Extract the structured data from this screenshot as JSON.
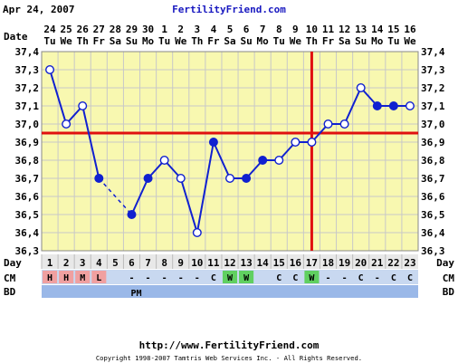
{
  "header": {
    "date": "Apr 24, 2007",
    "brand": "FertilityFriend.com"
  },
  "footer": {
    "url": "http://www.FertilityFriend.com",
    "copyright": "Copyright 1998-2007 Tamtris Web Services Inc. - All Rights Reserved."
  },
  "colors": {
    "plot_bg": "#f8f8b0",
    "grid": "#c8c8c8",
    "temp_line": "#1020d0",
    "coverline": "#e01010",
    "row_day_bg": "#e8e8e8",
    "row_cm_bg": "#c8d8f0",
    "row_bd_bg": "#9ab8e8",
    "cm_H": "#f0a0a0",
    "cm_M": "#f0a0a0",
    "cm_L": "#f0a0a0",
    "cm_W": "#60d060"
  },
  "labels": {
    "date_row": "Date",
    "day_row": "Day",
    "cm_row": "CM",
    "bd_row": "BD"
  },
  "chart_data": {
    "type": "line",
    "title": "",
    "ylim": [
      36.3,
      37.4
    ],
    "yticks": [
      "37,4",
      "37,3",
      "37,2",
      "37,1",
      "37,0",
      "36,9",
      "36,8",
      "36,7",
      "36,6",
      "36,5",
      "36,4",
      "36,3"
    ],
    "ytick_values": [
      37.4,
      37.3,
      37.2,
      37.1,
      37.0,
      36.9,
      36.8,
      36.7,
      36.6,
      36.5,
      36.4,
      36.3
    ],
    "dates": [
      "24",
      "25",
      "26",
      "27",
      "28",
      "29",
      "30",
      "1",
      "2",
      "3",
      "4",
      "5",
      "6",
      "7",
      "8",
      "9",
      "10",
      "11",
      "12",
      "13",
      "14",
      "15",
      "16"
    ],
    "weekdays": [
      "Tu",
      "We",
      "Th",
      "Fr",
      "Sa",
      "Su",
      "Mo",
      "Tu",
      "We",
      "Th",
      "Fr",
      "Sa",
      "Su",
      "Mo",
      "Tu",
      "We",
      "Th",
      "Fr",
      "Sa",
      "Su",
      "Mo",
      "Tu",
      "We"
    ],
    "days": [
      1,
      2,
      3,
      4,
      5,
      6,
      7,
      8,
      9,
      10,
      11,
      12,
      13,
      14,
      15,
      16,
      17,
      18,
      19,
      20,
      21,
      22,
      23
    ],
    "temps": [
      37.3,
      37.0,
      37.1,
      36.7,
      null,
      36.5,
      36.7,
      36.8,
      36.7,
      36.4,
      36.9,
      36.7,
      36.7,
      36.8,
      36.8,
      36.9,
      36.9,
      37.0,
      37.0,
      37.2,
      37.1,
      37.1,
      37.1
    ],
    "filled": [
      false,
      false,
      false,
      true,
      false,
      true,
      true,
      false,
      false,
      false,
      true,
      false,
      true,
      true,
      false,
      false,
      false,
      false,
      false,
      false,
      true,
      true,
      false
    ],
    "dashed_segment": [
      4,
      6
    ],
    "coverline": 36.95,
    "ovulation_day": 17,
    "cm": [
      "H",
      "H",
      "M",
      "L",
      "",
      "-",
      "-",
      "-",
      "-",
      "-",
      "C",
      "W",
      "W",
      "",
      "C",
      "C",
      "W",
      "-",
      "-",
      "C",
      "-",
      "C",
      "C"
    ],
    "bd": [
      "",
      "",
      "",
      "",
      "",
      "PM",
      "",
      "",
      "",
      "",
      "",
      "",
      "",
      "",
      "",
      "",
      "",
      "",
      "",
      "",
      "",
      "",
      ""
    ],
    "grid": true
  }
}
